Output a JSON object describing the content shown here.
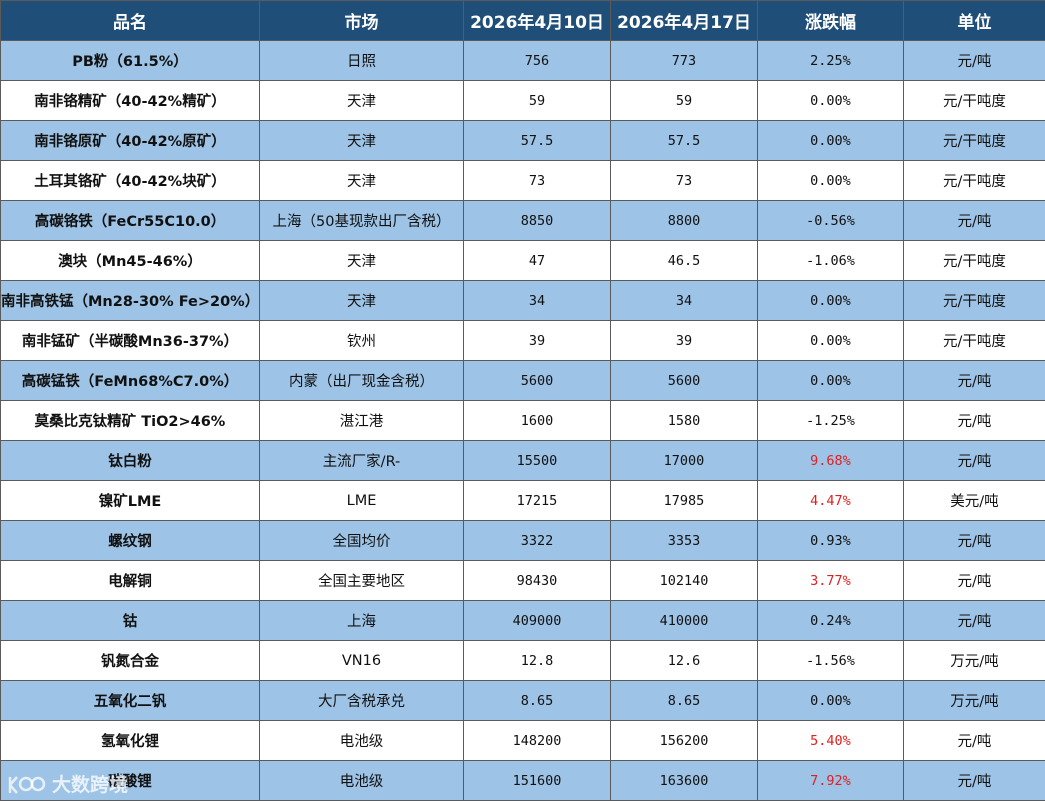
{
  "headers": [
    "品名",
    "市场",
    "2026年4月10日",
    "2026年4月17日",
    "涨跌幅",
    "单位"
  ],
  "rows": [
    {
      "name": "PB粉（61.5%）",
      "market": "日照",
      "prev": "756",
      "curr": "773",
      "change": "2.25%",
      "unit": "元/吨",
      "highlight": false
    },
    {
      "name": "南非铬精矿（40-42%精矿）",
      "market": "天津",
      "prev": "59",
      "curr": "59",
      "change": "0.00%",
      "unit": "元/干吨度",
      "highlight": false
    },
    {
      "name": "南非铬原矿（40-42%原矿）",
      "market": "天津",
      "prev": "57.5",
      "curr": "57.5",
      "change": "0.00%",
      "unit": "元/干吨度",
      "highlight": false
    },
    {
      "name": "土耳其铬矿（40-42%块矿）",
      "market": "天津",
      "prev": "73",
      "curr": "73",
      "change": "0.00%",
      "unit": "元/干吨度",
      "highlight": false
    },
    {
      "name": "高碳铬铁（FeCr55C10.0）",
      "market": "上海（50基现款出厂含税）",
      "prev": "8850",
      "curr": "8800",
      "change": "-0.56%",
      "unit": "元/吨",
      "highlight": false
    },
    {
      "name": "澳块（Mn45-46%）",
      "market": "天津",
      "prev": "47",
      "curr": "46.5",
      "change": "-1.06%",
      "unit": "元/干吨度",
      "highlight": false
    },
    {
      "name": "南非高铁锰（Mn28-30% Fe>20%）",
      "market": "天津",
      "prev": "34",
      "curr": "34",
      "change": "0.00%",
      "unit": "元/干吨度",
      "highlight": false
    },
    {
      "name": "南非锰矿（半碳酸Mn36-37%）",
      "market": "钦州",
      "prev": "39",
      "curr": "39",
      "change": "0.00%",
      "unit": "元/干吨度",
      "highlight": false
    },
    {
      "name": "高碳锰铁（FeMn68%C7.0%）",
      "market": "内蒙（出厂现金含税）",
      "prev": "5600",
      "curr": "5600",
      "change": "0.00%",
      "unit": "元/吨",
      "highlight": false
    },
    {
      "name": "莫桑比克钛精矿 TiO2>46%",
      "market": "湛江港",
      "prev": "1600",
      "curr": "1580",
      "change": "-1.25%",
      "unit": "元/吨",
      "highlight": false
    },
    {
      "name": "钛白粉",
      "market": "主流厂家/R-",
      "prev": "15500",
      "curr": "17000",
      "change": "9.68%",
      "unit": "元/吨",
      "highlight": true
    },
    {
      "name": "镍矿LME",
      "market": "LME",
      "prev": "17215",
      "curr": "17985",
      "change": "4.47%",
      "unit": "美元/吨",
      "highlight": true
    },
    {
      "name": "螺纹钢",
      "market": "全国均价",
      "prev": "3322",
      "curr": "3353",
      "change": "0.93%",
      "unit": "元/吨",
      "highlight": false
    },
    {
      "name": "电解铜",
      "market": "全国主要地区",
      "prev": "98430",
      "curr": "102140",
      "change": "3.77%",
      "unit": "元/吨",
      "highlight": true
    },
    {
      "name": "钴",
      "market": "上海",
      "prev": "409000",
      "curr": "410000",
      "change": "0.24%",
      "unit": "元/吨",
      "highlight": false
    },
    {
      "name": "钒氮合金",
      "market": "VN16",
      "prev": "12.8",
      "curr": "12.6",
      "change": "-1.56%",
      "unit": "万元/吨",
      "highlight": false
    },
    {
      "name": "五氧化二钒",
      "market": "大厂含税承兑",
      "prev": "8.65",
      "curr": "8.65",
      "change": "0.00%",
      "unit": "万元/吨",
      "highlight": false
    },
    {
      "name": "氢氧化锂",
      "market": "电池级",
      "prev": "148200",
      "curr": "156200",
      "change": "5.40%",
      "unit": "元/吨",
      "highlight": true
    },
    {
      "name": "碳酸锂",
      "market": "电池级",
      "prev": "151600",
      "curr": "163600",
      "change": "7.92%",
      "unit": "元/吨",
      "highlight": true
    }
  ],
  "watermark": {
    "text": "大数跨境"
  },
  "colors": {
    "header_bg": "#1f4e79",
    "band": "#9dc3e6",
    "up": "#e02020"
  }
}
